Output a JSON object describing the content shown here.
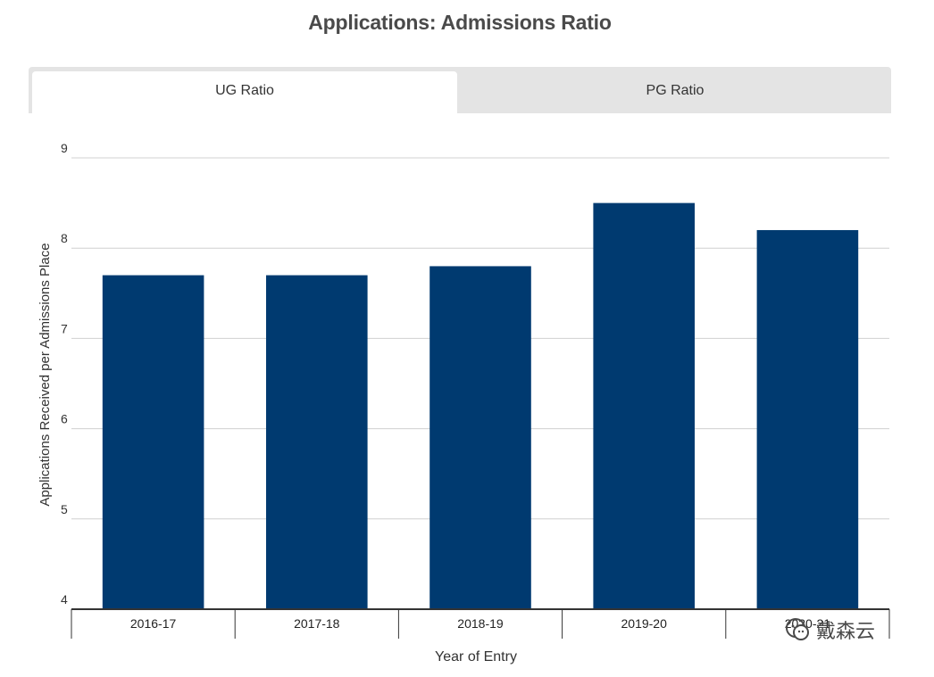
{
  "header": {
    "title": "Applications: Admissions Ratio"
  },
  "tabs": [
    {
      "label": "UG Ratio",
      "active": true
    },
    {
      "label": "PG Ratio",
      "active": false
    }
  ],
  "watermark": {
    "text": "戴森云",
    "icon": "wechat-icon"
  },
  "colors": {
    "bar": "#003a70",
    "grid": "#d0d0d0",
    "axis": "#333333",
    "tab_inactive": "#e4e4e4"
  },
  "chart_data": {
    "type": "bar",
    "title": "Applications: Admissions Ratio",
    "xlabel": "Year of Entry",
    "ylabel": "Applications Received per Admissions Place",
    "categories": [
      "2016-17",
      "2017-18",
      "2018-19",
      "2019-20",
      "2020-21"
    ],
    "values": [
      7.7,
      7.7,
      7.8,
      8.5,
      8.2
    ],
    "ylim": [
      4,
      9
    ],
    "yticks": [
      4,
      5,
      6,
      7,
      8,
      9
    ],
    "grid": true,
    "legend": "none"
  }
}
